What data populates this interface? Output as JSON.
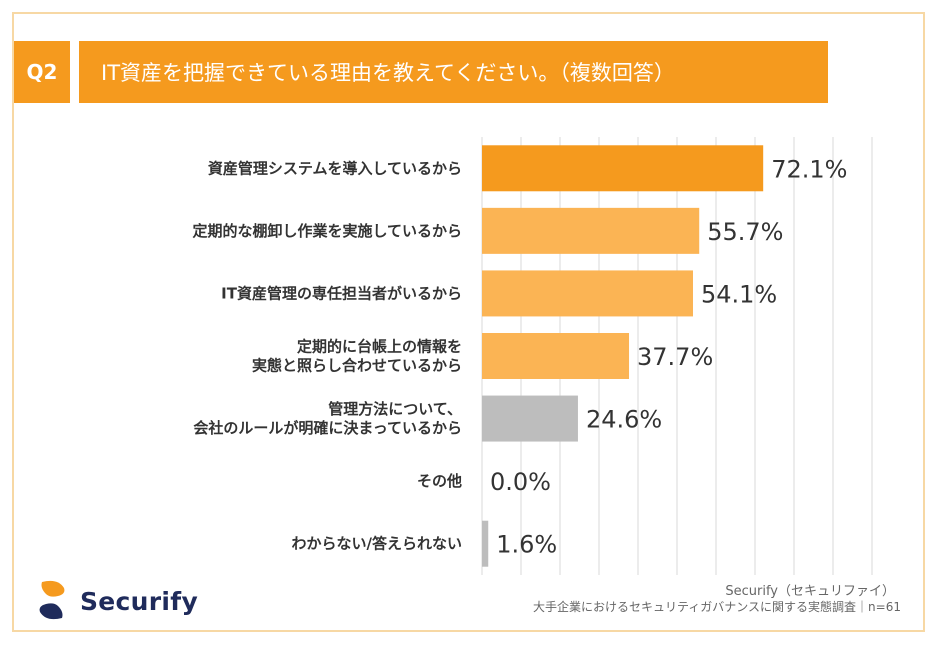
{
  "header": {
    "badge": "Q2",
    "question": "IT資産を把握できている理由を教えてください。（複数回答）"
  },
  "chart_data": {
    "type": "bar",
    "orientation": "horizontal",
    "title": "IT資産を把握できている理由を教えてください。（複数回答）",
    "xlim": [
      0,
      100
    ],
    "grid": true,
    "categories": [
      [
        "資産管理システムを導入しているから"
      ],
      [
        "定期的な棚卸し作業を実施しているから"
      ],
      [
        "IT資産管理の専任担当者がいるから"
      ],
      [
        "定期的に台帳上の情報を",
        "実態と照らし合わせているから"
      ],
      [
        "管理方法について、",
        "会社のルールが明確に決まっているから"
      ],
      [
        "その他"
      ],
      [
        "わからない/答えられない"
      ]
    ],
    "values": [
      72.1,
      55.7,
      54.1,
      37.7,
      24.6,
      0.0,
      1.6
    ],
    "value_labels": [
      "72.1%",
      "55.7%",
      "54.1%",
      "37.7%",
      "24.6%",
      "0.0%",
      "1.6%"
    ],
    "colors": [
      "#f59a1e",
      "#fbb454",
      "#fbb454",
      "#fbb454",
      "#bdbdbd",
      "#bdbdbd",
      "#bdbdbd"
    ]
  },
  "footer": {
    "brand": "Securify",
    "source_line1": "Securify（セキュリファイ）",
    "source_line2": "大手企業におけるセキュリティガバナンスに関する実態調査｜n=61"
  }
}
